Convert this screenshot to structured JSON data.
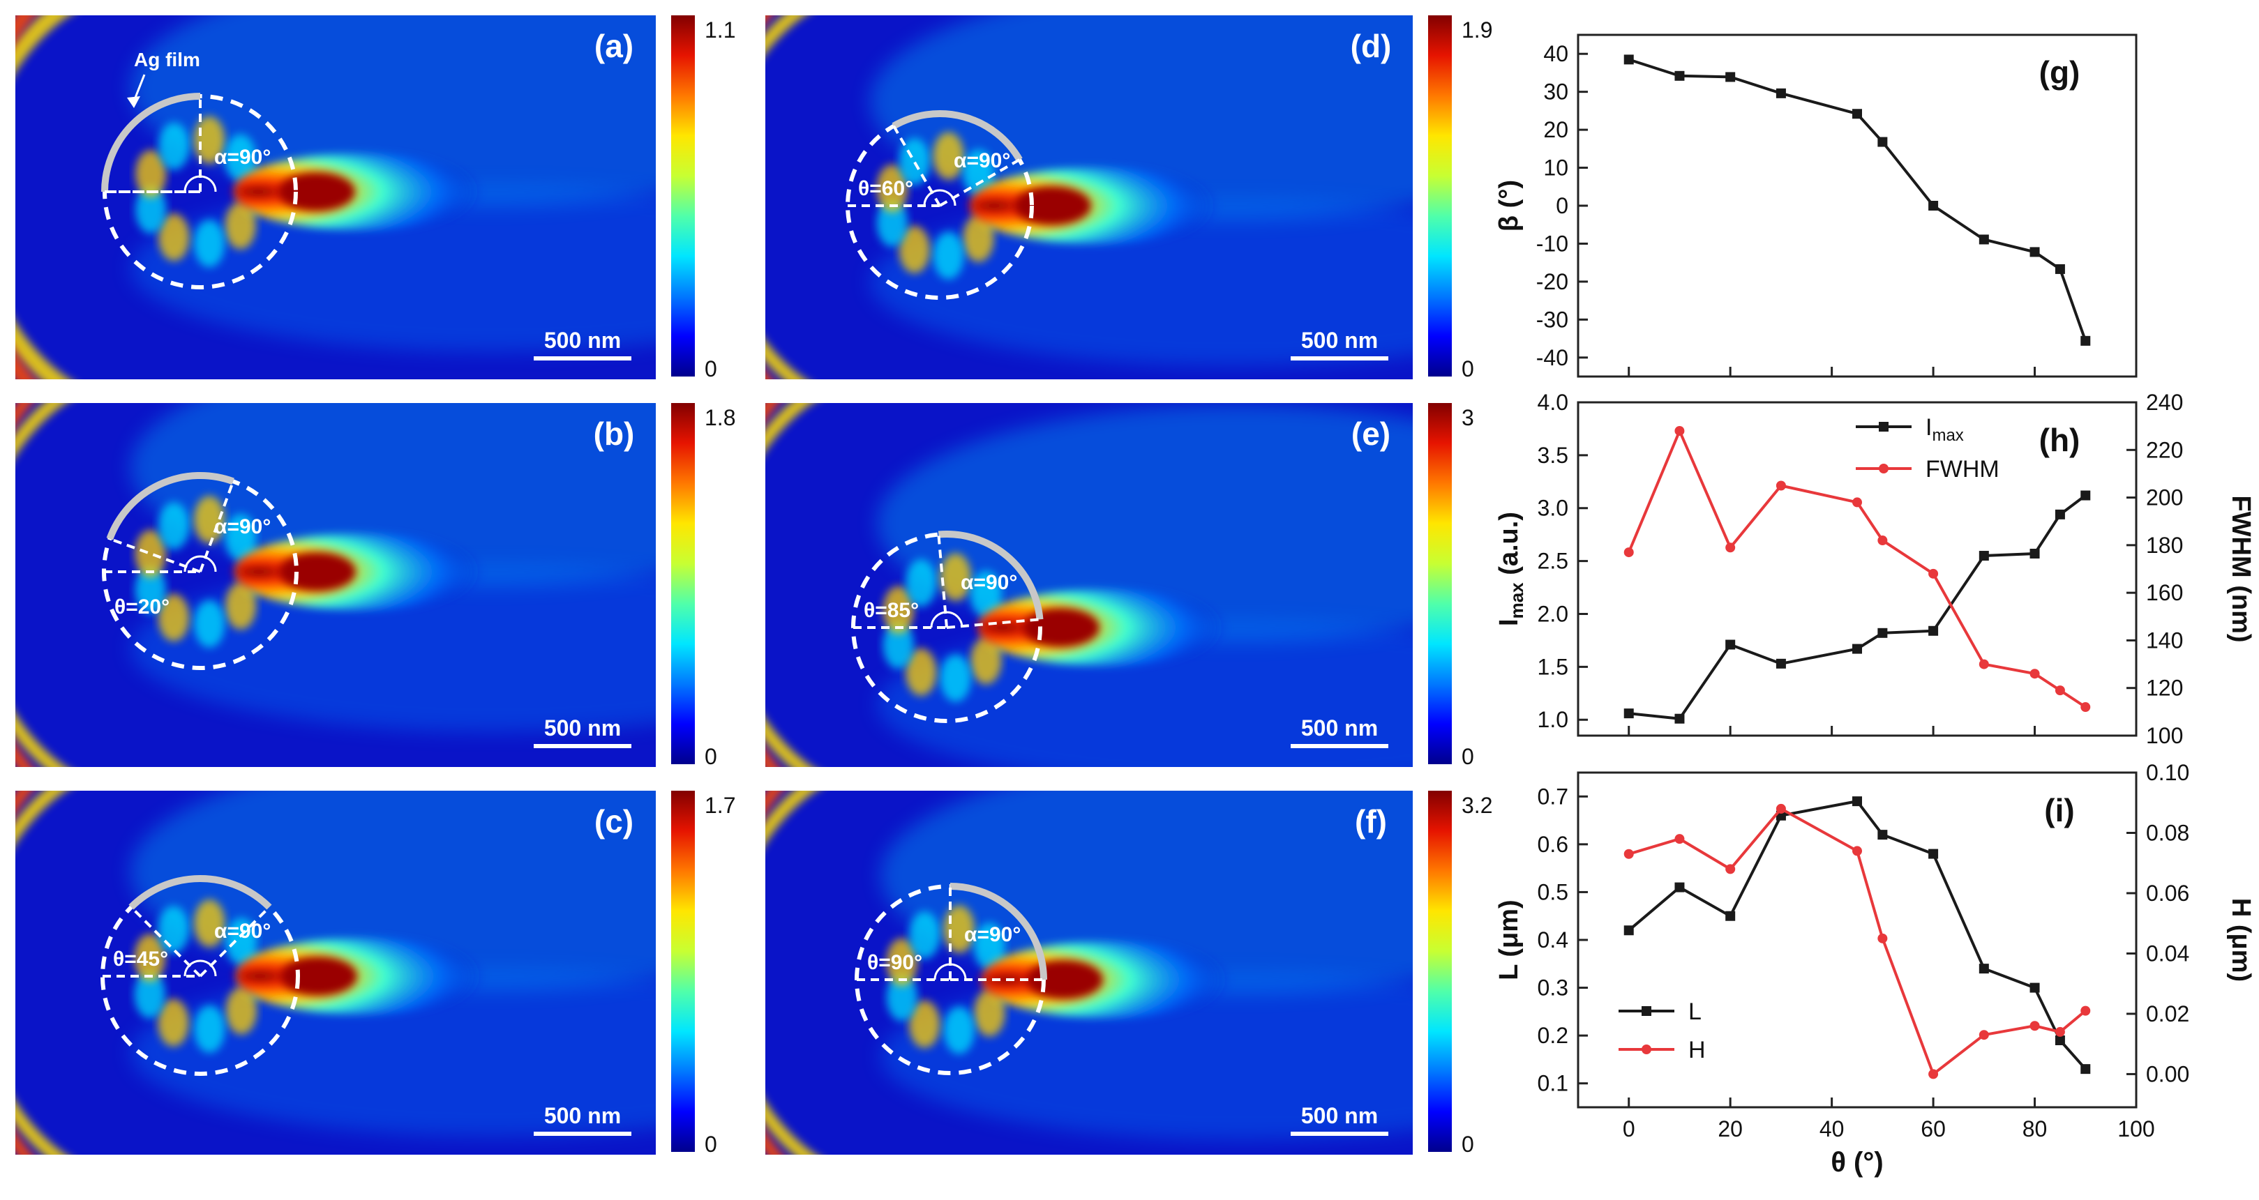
{
  "colors": {
    "line_black": "#1a1a1a",
    "line_red": "#e8383b",
    "circle_dash": "#ffffff",
    "ag_film": "#c8c8c8",
    "field_bg": "#0a14c8"
  },
  "colormap": [
    "#00008c",
    "#0000ff",
    "#0078ff",
    "#00e6ff",
    "#50ffaa",
    "#c8ff32",
    "#ffe600",
    "#ff7800",
    "#e61400",
    "#820000"
  ],
  "panels": [
    {
      "label": "(a)",
      "cbar_max": "1.1",
      "cbar_min": "0",
      "scalebar": "500 nm",
      "annotation": "Ag film",
      "alpha": "α=90°",
      "theta": ""
    },
    {
      "label": "(b)",
      "cbar_max": "1.8",
      "cbar_min": "0",
      "scalebar": "500 nm",
      "alpha": "α=90°",
      "theta": "θ=20°"
    },
    {
      "label": "(c)",
      "cbar_max": "1.7",
      "cbar_min": "0",
      "scalebar": "500 nm",
      "alpha": "α=90°",
      "theta": "θ=45°"
    },
    {
      "label": "(d)",
      "cbar_max": "1.9",
      "cbar_min": "0",
      "scalebar": "500 nm",
      "alpha": "α=90°",
      "theta": "θ=60°"
    },
    {
      "label": "(e)",
      "cbar_max": "3",
      "cbar_min": "0",
      "scalebar": "500 nm",
      "alpha": "α=90°",
      "theta": "θ=85°"
    },
    {
      "label": "(f)",
      "cbar_max": "3.2",
      "cbar_min": "0",
      "scalebar": "500 nm",
      "alpha": "α=90°",
      "theta": "θ=90°"
    }
  ],
  "chart_data": [
    {
      "type": "line",
      "panel": "(g)",
      "xlabel": "",
      "ylabel": "β (°)",
      "xlim": [
        -10,
        100
      ],
      "ylim": [
        -45,
        45
      ],
      "yticks": [
        40,
        30,
        20,
        10,
        0,
        -10,
        -20,
        -30,
        -40
      ],
      "series": [
        {
          "name": "β",
          "color": "#1a1a1a",
          "marker": "square",
          "x": [
            0,
            10,
            20,
            30,
            45,
            50,
            60,
            70,
            80,
            85,
            90
          ],
          "y": [
            38.5,
            34.2,
            33.9,
            29.6,
            24.2,
            16.8,
            0.0,
            -8.9,
            -12.2,
            -16.7,
            -35.6
          ]
        }
      ]
    },
    {
      "type": "line",
      "panel": "(h)",
      "xlabel": "",
      "ylabel": "Imax (a.u.)",
      "ylabel_main": "I",
      "ylabel_sub": "max",
      "ylabel_tail": " (a.u.)",
      "ylabel_right": "FWHM (nm)",
      "xlim": [
        -10,
        100
      ],
      "ylim": [
        0.85,
        4.0
      ],
      "yticks": [
        4.0,
        3.5,
        3.0,
        2.5,
        2.0,
        1.5,
        1.0
      ],
      "ylim_right": [
        100,
        240
      ],
      "yticks_right": [
        240,
        220,
        200,
        180,
        160,
        140,
        120,
        100
      ],
      "legend": {
        "position": "top-center",
        "entries": [
          "Imax",
          "FWHM"
        ],
        "imax_main": "I",
        "imax_sub": "max",
        "fwhm": "FWHM"
      },
      "series": [
        {
          "name": "Imax",
          "axis": "left",
          "color": "#1a1a1a",
          "marker": "square",
          "x": [
            0,
            10,
            20,
            30,
            45,
            50,
            60,
            70,
            80,
            85,
            90
          ],
          "y": [
            1.06,
            1.01,
            1.71,
            1.53,
            1.67,
            1.82,
            1.84,
            2.55,
            2.57,
            2.94,
            3.12
          ]
        },
        {
          "name": "FWHM",
          "axis": "right",
          "color": "#e8383b",
          "marker": "circle",
          "x": [
            0,
            10,
            20,
            30,
            45,
            50,
            60,
            70,
            80,
            85,
            90
          ],
          "y": [
            177,
            228,
            179,
            205,
            198,
            182,
            168,
            130,
            126,
            119,
            112
          ]
        }
      ]
    },
    {
      "type": "line",
      "panel": "(i)",
      "xlabel": "θ (°)",
      "ylabel": "L (μm)",
      "ylabel_right": "H (μm)",
      "xlim": [
        -10,
        100
      ],
      "xticks": [
        0,
        20,
        40,
        60,
        80,
        100
      ],
      "ylim": [
        0.05,
        0.75
      ],
      "yticks": [
        0.7,
        0.6,
        0.5,
        0.4,
        0.3,
        0.2,
        0.1
      ],
      "ylim_right": [
        -0.011,
        0.1
      ],
      "yticks_right": [
        "0.10",
        "0.08",
        "0.06",
        "0.04",
        "0.02",
        "0.00"
      ],
      "legend": {
        "position": "bottom-left",
        "entries": [
          "L",
          "H"
        ]
      },
      "series": [
        {
          "name": "L",
          "axis": "left",
          "color": "#1a1a1a",
          "marker": "square",
          "x": [
            0,
            10,
            20,
            30,
            45,
            50,
            60,
            70,
            80,
            85,
            90
          ],
          "y": [
            0.42,
            0.51,
            0.45,
            0.66,
            0.69,
            0.62,
            0.58,
            0.34,
            0.3,
            0.19,
            0.13
          ]
        },
        {
          "name": "H",
          "axis": "right",
          "color": "#e8383b",
          "marker": "circle",
          "x": [
            0,
            10,
            20,
            30,
            45,
            50,
            60,
            70,
            80,
            85,
            90
          ],
          "y": [
            0.073,
            0.078,
            0.068,
            0.088,
            0.074,
            0.045,
            0.0,
            0.013,
            0.016,
            0.014,
            0.021
          ]
        }
      ]
    }
  ]
}
